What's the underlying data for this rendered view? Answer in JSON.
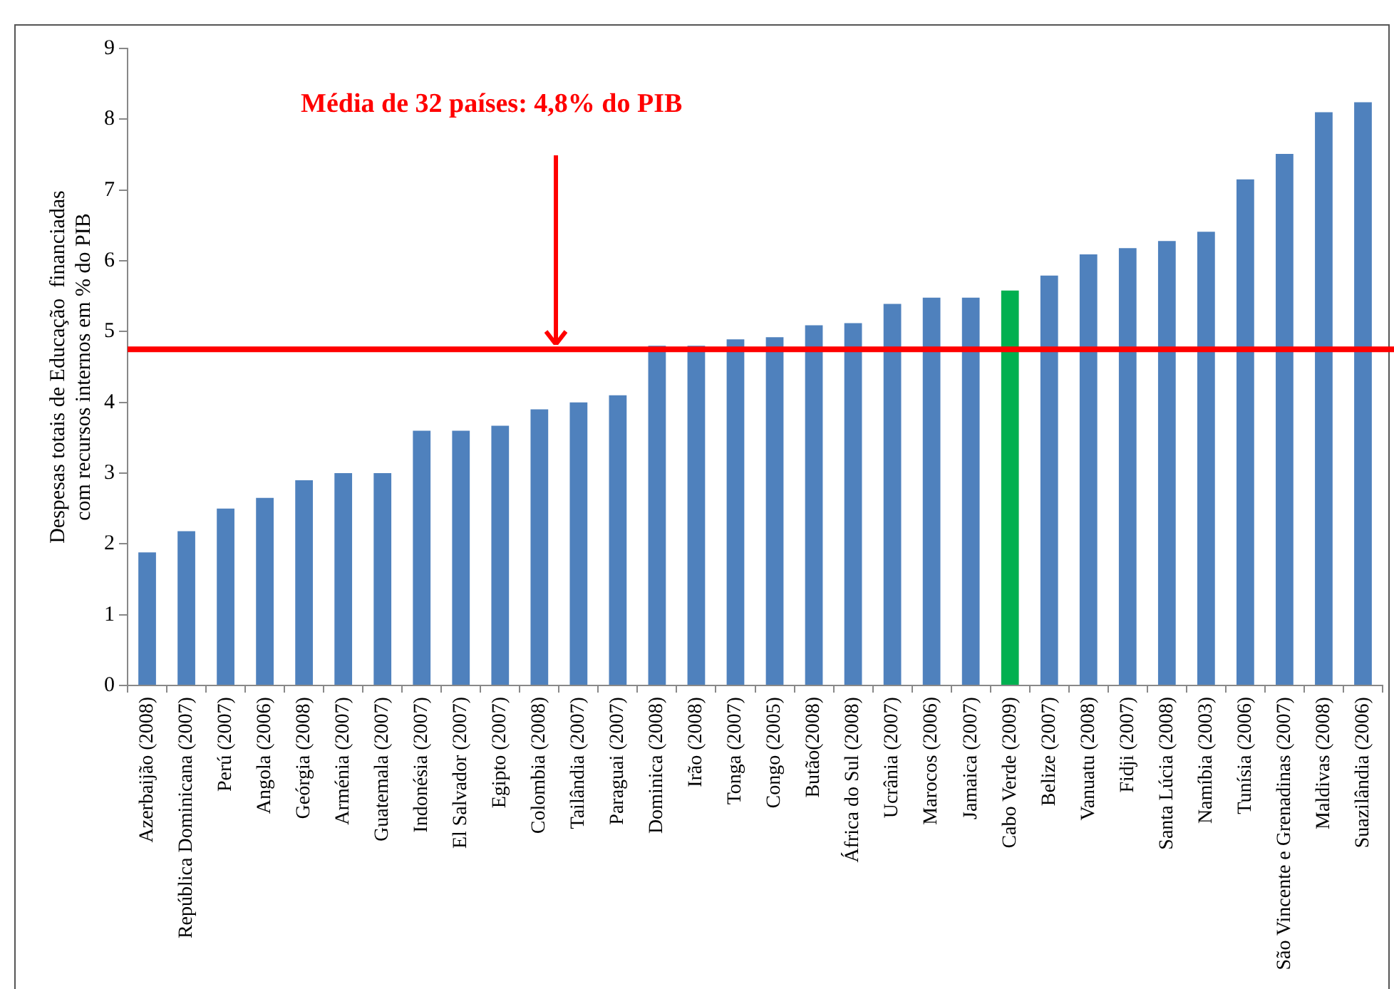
{
  "chart_data": {
    "type": "bar",
    "ylabel": "Despesas totais de Educação  financiadas com recursos internos em % do PIB",
    "categories": [
      "Azerbaijão (2008)",
      "República Dominicana (2007)",
      "Perú (2007)",
      "Angola (2006)",
      "Geórgia (2008)",
      "Arménia (2007)",
      "Guatemala (2007)",
      "Indonésia (2007)",
      "El Salvador (2007)",
      "Egipto (2007)",
      "Colombia (2008)",
      "Tailândia (2007)",
      "Paraguai (2007)",
      "Dominica (2008)",
      "Irão (2008)",
      "Tonga (2007)",
      "Congo (2005)",
      "Butão(2008)",
      "África do Sul (2008)",
      "Ucrânia (2007)",
      "Marocos (2006)",
      "Jamaica (2007)",
      "Cabo Verde (2009)",
      "Belize (2007)",
      "Vanuatu (2008)",
      "Fidji (2007)",
      "Santa Lúcia (2008)",
      "Namíbia (2003)",
      "Tunísia (2006)",
      "São Vincente e Grenadinas (2007)",
      "Maldivas (2008)",
      "Suazilândia (2006)"
    ],
    "values": [
      1.88,
      2.18,
      2.5,
      2.65,
      2.9,
      3.0,
      3.0,
      3.6,
      3.6,
      3.67,
      3.9,
      4.0,
      4.1,
      4.8,
      4.8,
      4.89,
      4.92,
      5.09,
      5.12,
      5.39,
      5.48,
      5.48,
      5.58,
      5.79,
      6.09,
      6.18,
      6.28,
      6.41,
      7.15,
      7.51,
      8.1,
      8.24
    ],
    "colors": [
      "#4f81bd",
      "#4f81bd",
      "#4f81bd",
      "#4f81bd",
      "#4f81bd",
      "#4f81bd",
      "#4f81bd",
      "#4f81bd",
      "#4f81bd",
      "#4f81bd",
      "#4f81bd",
      "#4f81bd",
      "#4f81bd",
      "#4f81bd",
      "#4f81bd",
      "#4f81bd",
      "#4f81bd",
      "#4f81bd",
      "#4f81bd",
      "#4f81bd",
      "#4f81bd",
      "#4f81bd",
      "#00b050",
      "#4f81bd",
      "#4f81bd",
      "#4f81bd",
      "#4f81bd",
      "#4f81bd",
      "#4f81bd",
      "#4f81bd",
      "#4f81bd",
      "#4f81bd"
    ],
    "ylim": [
      0,
      9
    ],
    "yticks": [
      0,
      1,
      2,
      3,
      4,
      5,
      6,
      7,
      8,
      9
    ],
    "grid": false,
    "legend": false,
    "ref_lines": [
      {
        "axis": "y",
        "value": 4.75,
        "color": "#ff0000"
      }
    ],
    "annotations": [
      "Média de 32 países: 4,8% do PIB"
    ]
  }
}
